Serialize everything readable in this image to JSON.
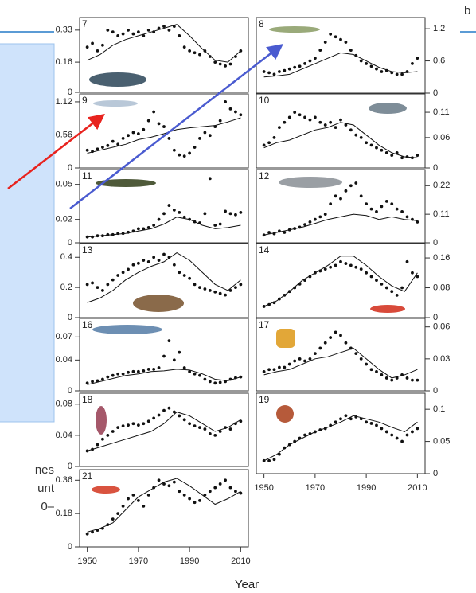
{
  "corner_label": "b",
  "side_text": [
    "nes",
    "unt",
    "0–"
  ],
  "mark_color": "#111",
  "xaxis": {
    "xlim": [
      1947,
      2013
    ],
    "xticks": [
      1950,
      1970,
      1990,
      2010
    ],
    "label": "Year"
  },
  "x": [
    1950,
    1952,
    1954,
    1956,
    1958,
    1960,
    1962,
    1964,
    1966,
    1968,
    1970,
    1972,
    1974,
    1976,
    1978,
    1980,
    1982,
    1984,
    1986,
    1988,
    1990,
    1992,
    1994,
    1996,
    1998,
    2000,
    2002,
    2004,
    2006,
    2008,
    2010
  ],
  "trend_x": [
    1950,
    1955,
    1960,
    1965,
    1970,
    1975,
    1980,
    1985,
    1990,
    1995,
    2000,
    2005,
    2010
  ],
  "chart_data": [
    {
      "type": "scatter-line",
      "label": "7",
      "ylim": [
        0,
        0.38
      ],
      "yticks": [
        0,
        0.16,
        0.33
      ],
      "points": [
        0.24,
        0.26,
        0.22,
        0.25,
        0.33,
        0.32,
        0.3,
        0.31,
        0.33,
        0.31,
        0.32,
        0.3,
        0.33,
        0.32,
        0.34,
        0.35,
        0.33,
        0.35,
        0.3,
        0.24,
        0.22,
        0.21,
        0.2,
        0.22,
        0.19,
        0.16,
        0.15,
        0.14,
        0.15,
        0.19,
        0.22
      ],
      "trend": [
        0.17,
        0.2,
        0.25,
        0.28,
        0.3,
        0.32,
        0.34,
        0.36,
        0.3,
        0.23,
        0.17,
        0.16,
        0.22
      ]
    },
    {
      "type": "scatter-line",
      "label": "9",
      "ylim": [
        0,
        1.2
      ],
      "yticks": [
        0,
        0.56,
        1.12
      ],
      "points": [
        0.3,
        0.28,
        0.32,
        0.35,
        0.38,
        0.45,
        0.4,
        0.5,
        0.55,
        0.6,
        0.58,
        0.65,
        0.8,
        0.95,
        0.75,
        0.7,
        0.5,
        0.3,
        0.22,
        0.2,
        0.25,
        0.35,
        0.5,
        0.6,
        0.55,
        0.7,
        0.8,
        1.12,
        1.0,
        0.95,
        0.9
      ],
      "trend": [
        0.25,
        0.3,
        0.35,
        0.4,
        0.48,
        0.52,
        0.58,
        0.65,
        0.68,
        0.7,
        0.72,
        0.78,
        0.85
      ]
    },
    {
      "type": "scatter-line",
      "label": "11",
      "ylim": [
        0,
        0.06
      ],
      "yticks": [
        0,
        0.02,
        0.05
      ],
      "points": [
        0.005,
        0.005,
        0.006,
        0.006,
        0.007,
        0.007,
        0.008,
        0.008,
        0.009,
        0.01,
        0.012,
        0.012,
        0.013,
        0.015,
        0.02,
        0.025,
        0.032,
        0.028,
        0.026,
        0.022,
        0.02,
        0.018,
        0.017,
        0.025,
        0.055,
        0.015,
        0.016,
        0.027,
        0.025,
        0.024,
        0.026
      ],
      "trend": [
        0.005,
        0.006,
        0.007,
        0.008,
        0.01,
        0.012,
        0.016,
        0.022,
        0.02,
        0.015,
        0.012,
        0.013,
        0.015
      ]
    },
    {
      "type": "scatter-line",
      "label": "13",
      "ylim": [
        0,
        0.47
      ],
      "yticks": [
        0,
        0.2,
        0.4
      ],
      "points": [
        0.22,
        0.23,
        0.2,
        0.18,
        0.22,
        0.25,
        0.28,
        0.3,
        0.32,
        0.35,
        0.36,
        0.38,
        0.37,
        0.4,
        0.38,
        0.42,
        0.4,
        0.35,
        0.3,
        0.28,
        0.26,
        0.22,
        0.2,
        0.19,
        0.18,
        0.17,
        0.16,
        0.15,
        0.18,
        0.2,
        0.22
      ],
      "trend": [
        0.1,
        0.13,
        0.18,
        0.25,
        0.3,
        0.34,
        0.37,
        0.43,
        0.38,
        0.3,
        0.22,
        0.18,
        0.25
      ]
    },
    {
      "type": "scatter-line",
      "label": "16",
      "ylim": [
        0,
        0.09
      ],
      "yticks": [
        0,
        0.04,
        0.07
      ],
      "points": [
        0.01,
        0.012,
        0.013,
        0.015,
        0.018,
        0.02,
        0.022,
        0.022,
        0.024,
        0.025,
        0.025,
        0.026,
        0.028,
        0.028,
        0.03,
        0.045,
        0.065,
        0.04,
        0.05,
        0.03,
        0.025,
        0.022,
        0.02,
        0.015,
        0.012,
        0.01,
        0.011,
        0.012,
        0.015,
        0.017,
        0.018
      ],
      "trend": [
        0.008,
        0.012,
        0.016,
        0.02,
        0.022,
        0.025,
        0.026,
        0.028,
        0.027,
        0.022,
        0.015,
        0.013,
        0.018
      ]
    },
    {
      "type": "scatter-line",
      "label": "18",
      "ylim": [
        0,
        0.09
      ],
      "yticks": [
        0,
        0.04,
        0.08
      ],
      "points": [
        0.02,
        0.022,
        0.028,
        0.035,
        0.04,
        0.045,
        0.05,
        0.052,
        0.053,
        0.055,
        0.053,
        0.055,
        0.058,
        0.062,
        0.066,
        0.072,
        0.075,
        0.07,
        0.065,
        0.06,
        0.055,
        0.052,
        0.05,
        0.048,
        0.042,
        0.04,
        0.045,
        0.05,
        0.048,
        0.055,
        0.058
      ],
      "trend": [
        0.02,
        0.025,
        0.03,
        0.035,
        0.04,
        0.045,
        0.055,
        0.07,
        0.065,
        0.055,
        0.045,
        0.05,
        0.06
      ]
    },
    {
      "type": "scatter-line",
      "label": "21",
      "ylim": [
        0,
        0.4
      ],
      "yticks": [
        0,
        0.18,
        0.36
      ],
      "points": [
        0.07,
        0.08,
        0.09,
        0.1,
        0.12,
        0.15,
        0.18,
        0.22,
        0.26,
        0.28,
        0.25,
        0.22,
        0.28,
        0.32,
        0.36,
        0.34,
        0.33,
        0.35,
        0.3,
        0.28,
        0.26,
        0.24,
        0.25,
        0.28,
        0.3,
        0.32,
        0.34,
        0.36,
        0.32,
        0.3,
        0.29
      ],
      "trend": [
        0.08,
        0.1,
        0.13,
        0.2,
        0.27,
        0.31,
        0.35,
        0.37,
        0.33,
        0.28,
        0.23,
        0.26,
        0.3
      ]
    },
    {
      "type": "scatter-line",
      "label": "8",
      "ylim": [
        0,
        1.35
      ],
      "yticks": [
        0,
        0.6,
        1.2
      ],
      "points": [
        0.4,
        0.38,
        0.35,
        0.4,
        0.42,
        0.45,
        0.48,
        0.5,
        0.55,
        0.6,
        0.65,
        0.8,
        0.95,
        1.1,
        1.05,
        1.0,
        0.95,
        0.8,
        0.7,
        0.6,
        0.55,
        0.5,
        0.45,
        0.4,
        0.42,
        0.38,
        0.35,
        0.35,
        0.4,
        0.55,
        0.65
      ],
      "trend": [
        0.3,
        0.32,
        0.35,
        0.45,
        0.55,
        0.65,
        0.75,
        0.72,
        0.6,
        0.48,
        0.4,
        0.38,
        0.4
      ]
    },
    {
      "type": "scatter-line",
      "label": "10",
      "ylim": [
        0,
        0.14
      ],
      "yticks": [
        0,
        0.06,
        0.11
      ],
      "points": [
        0.045,
        0.05,
        0.06,
        0.08,
        0.09,
        0.1,
        0.11,
        0.105,
        0.1,
        0.095,
        0.1,
        0.09,
        0.085,
        0.09,
        0.08,
        0.095,
        0.085,
        0.075,
        0.065,
        0.06,
        0.05,
        0.045,
        0.04,
        0.035,
        0.03,
        0.025,
        0.03,
        0.02,
        0.022,
        0.02,
        0.025
      ],
      "trend": [
        0.04,
        0.05,
        0.055,
        0.065,
        0.075,
        0.08,
        0.09,
        0.085,
        0.065,
        0.045,
        0.03,
        0.022,
        0.02
      ]
    },
    {
      "type": "scatter-line",
      "label": "12",
      "ylim": [
        0,
        0.27
      ],
      "yticks": [
        0,
        0.11,
        0.22
      ],
      "points": [
        0.03,
        0.04,
        0.035,
        0.045,
        0.04,
        0.05,
        0.055,
        0.06,
        0.07,
        0.08,
        0.09,
        0.1,
        0.11,
        0.15,
        0.18,
        0.17,
        0.2,
        0.22,
        0.23,
        0.18,
        0.15,
        0.13,
        0.12,
        0.14,
        0.16,
        0.15,
        0.13,
        0.12,
        0.1,
        0.09,
        0.08
      ],
      "trend": [
        0.03,
        0.04,
        0.05,
        0.06,
        0.075,
        0.09,
        0.1,
        0.11,
        0.105,
        0.09,
        0.1,
        0.09,
        0.085
      ]
    },
    {
      "type": "scatter-line",
      "label": "14",
      "ylim": [
        0,
        0.19
      ],
      "yticks": [
        0,
        0.08,
        0.16
      ],
      "points": [
        0.03,
        0.035,
        0.04,
        0.05,
        0.06,
        0.07,
        0.08,
        0.09,
        0.1,
        0.11,
        0.12,
        0.125,
        0.13,
        0.135,
        0.14,
        0.15,
        0.145,
        0.14,
        0.135,
        0.13,
        0.12,
        0.11,
        0.1,
        0.09,
        0.08,
        0.07,
        0.06,
        0.08,
        0.15,
        0.12,
        0.11
      ],
      "trend": [
        0.03,
        0.045,
        0.07,
        0.1,
        0.12,
        0.14,
        0.165,
        0.165,
        0.14,
        0.11,
        0.085,
        0.07,
        0.12
      ]
    },
    {
      "type": "scatter-line",
      "label": "17",
      "ylim": [
        0,
        0.065
      ],
      "yticks": [
        0,
        0.03,
        0.06
      ],
      "points": [
        0.018,
        0.02,
        0.02,
        0.022,
        0.022,
        0.025,
        0.028,
        0.03,
        0.028,
        0.03,
        0.035,
        0.04,
        0.045,
        0.05,
        0.055,
        0.052,
        0.045,
        0.04,
        0.035,
        0.03,
        0.025,
        0.02,
        0.018,
        0.015,
        0.012,
        0.01,
        0.012,
        0.015,
        0.012,
        0.01,
        0.01
      ],
      "trend": [
        0.015,
        0.018,
        0.02,
        0.025,
        0.03,
        0.032,
        0.036,
        0.04,
        0.03,
        0.02,
        0.012,
        0.015,
        0.02
      ]
    },
    {
      "type": "scatter-line",
      "label": "19",
      "ylim": [
        0,
        0.12
      ],
      "yticks": [
        0,
        0.05,
        0.1
      ],
      "points": [
        0.02,
        0.02,
        0.022,
        0.03,
        0.04,
        0.045,
        0.05,
        0.055,
        0.06,
        0.062,
        0.065,
        0.068,
        0.07,
        0.075,
        0.08,
        0.085,
        0.09,
        0.085,
        0.088,
        0.085,
        0.08,
        0.078,
        0.075,
        0.07,
        0.065,
        0.06,
        0.055,
        0.05,
        0.06,
        0.065,
        0.07
      ],
      "trend": [
        0.02,
        0.03,
        0.045,
        0.055,
        0.065,
        0.072,
        0.08,
        0.09,
        0.085,
        0.08,
        0.072,
        0.065,
        0.08
      ]
    }
  ]
}
